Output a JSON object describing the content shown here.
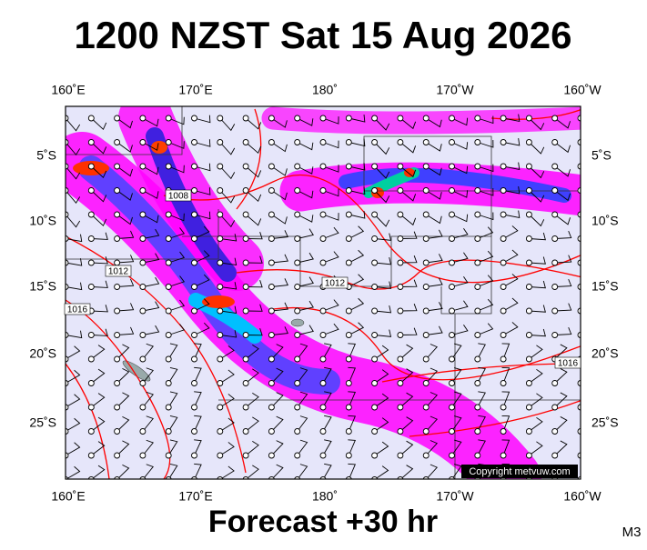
{
  "title": "1200 NZST Sat 15 Aug 2026",
  "footer": "Forecast +30 hr",
  "corner_label": "M3",
  "copyright": "Copyright metvuw.com",
  "map": {
    "top_labels": [
      "160˚E",
      "170˚E",
      "180˚",
      "170˚W",
      "160˚W"
    ],
    "bottom_labels": [
      "160˚E",
      "170˚E",
      "180˚",
      "170˚W",
      "160˚W"
    ],
    "left_labels": [
      "5˚S",
      "10˚S",
      "15˚S",
      "20˚S",
      "25˚S"
    ],
    "right_labels": [
      "5˚S",
      "10˚S",
      "15˚S",
      "20˚S",
      "25˚S"
    ],
    "isobar_labels": [
      "1008",
      "1012",
      "1012",
      "1016",
      "1016"
    ]
  }
}
